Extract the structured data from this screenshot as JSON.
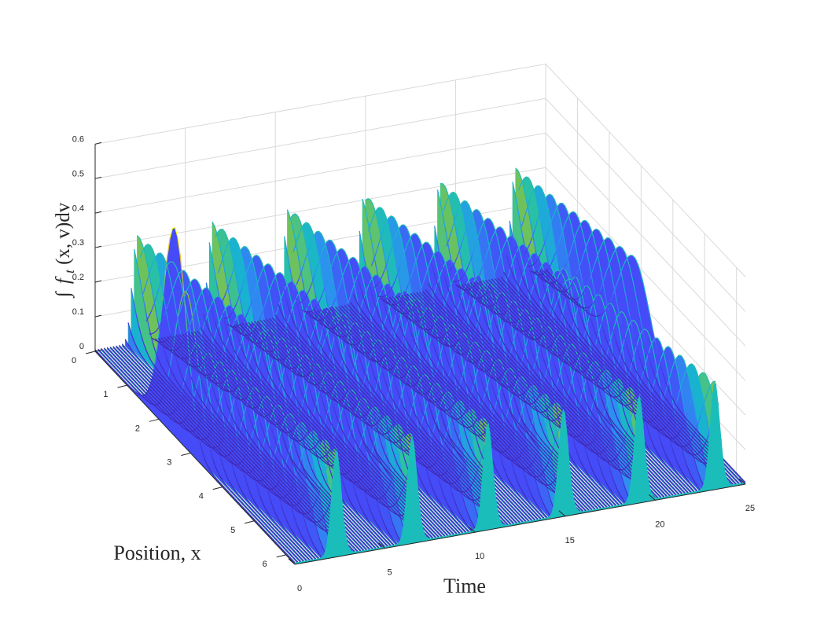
{
  "chart_data": {
    "type": "surface",
    "title": "",
    "xlabel": "Time",
    "ylabel": "Position, x",
    "zlabel": "∫ f_t(x, v)dv",
    "zlabel_parts": {
      "integral": "∫",
      "f": "f",
      "sub": "t",
      "args": "(x, v)dv"
    },
    "xlim": [
      0,
      25
    ],
    "ylim": [
      0,
      6.28
    ],
    "zlim": [
      0,
      0.6
    ],
    "x_ticks": [
      "0",
      "5",
      "10",
      "15",
      "20",
      "25"
    ],
    "y_ticks": [
      "0",
      "1",
      "2",
      "3",
      "4",
      "5",
      "6"
    ],
    "z_ticks": [
      "0",
      "0.1",
      "0.2",
      "0.3",
      "0.4",
      "0.5",
      "0.6"
    ],
    "grid": true,
    "colormap": "parula",
    "colormap_colors": [
      "#3e26a8",
      "#4743f8",
      "#2d8ff0",
      "#18b4cf",
      "#2ac1a3",
      "#8cc33e",
      "#eaba30",
      "#f9fb15"
    ],
    "wall_color": "#1bbdbb",
    "series": [
      {
        "name": "",
        "description_free": true,
        "x": [
          0,
          1,
          5,
          9,
          13,
          17,
          21,
          25
        ],
        "peak_x_position": [
          2.5,
          2.8,
          3.1,
          3.4,
          3.7,
          4.0,
          4.3,
          4.6
        ],
        "peak_height": [
          0.6,
          0.3,
          0.3,
          0.3,
          0.3,
          0.3,
          0.3,
          0.3
        ]
      }
    ],
    "peaks": [
      {
        "t": 0,
        "x": 2.5,
        "z": 0.6
      },
      {
        "t": 4.2,
        "z": 0.33
      },
      {
        "t": 8.4,
        "z": 0.33
      },
      {
        "t": 12.6,
        "z": 0.33
      },
      {
        "t": 16.8,
        "z": 0.33
      },
      {
        "t": 21.0,
        "z": 0.33
      }
    ]
  }
}
